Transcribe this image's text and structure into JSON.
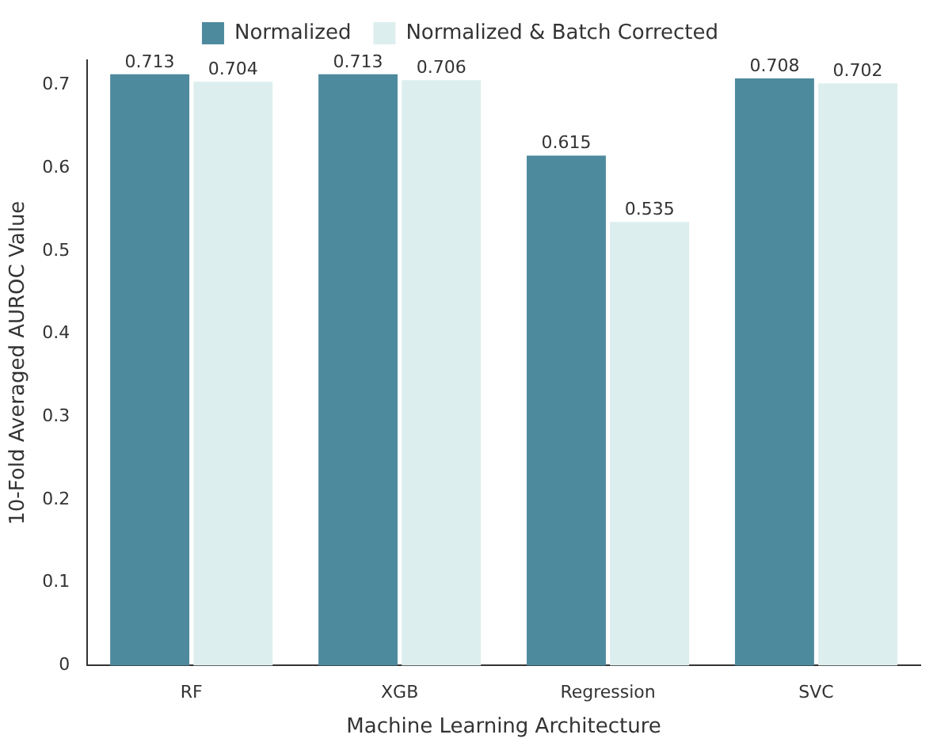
{
  "chart_data": {
    "type": "bar",
    "xlabel": "Machine Learning Architecture",
    "ylabel": "10-Fold Averaged AUROC Value",
    "categories": [
      "RF",
      "XGB",
      "Regression",
      "SVC"
    ],
    "series": [
      {
        "name": "Normalized",
        "color": "#4e8a9e",
        "values": [
          0.713,
          0.713,
          0.615,
          0.708
        ]
      },
      {
        "name": "Normalized & Batch Corrected",
        "color": "#ddeeee",
        "values": [
          0.704,
          0.706,
          0.535,
          0.702
        ]
      }
    ],
    "ylim": [
      0,
      0.73
    ],
    "yticks": [
      0,
      0.1,
      0.2,
      0.3,
      0.4,
      0.5,
      0.6,
      0.7
    ],
    "grid": false,
    "legend": "top",
    "data_labels": true
  }
}
